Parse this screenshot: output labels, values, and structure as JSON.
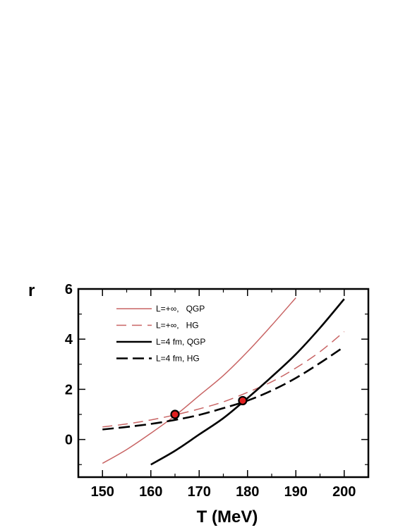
{
  "chart_data": {
    "type": "line",
    "xlabel": "T (MeV)",
    "ylabel": "r",
    "xlim": [
      145,
      205
    ],
    "ylim": [
      -1.5,
      6
    ],
    "x_ticks": [
      150,
      160,
      170,
      180,
      190,
      200
    ],
    "y_ticks": [
      0,
      2,
      4,
      6
    ],
    "legend_position": "top-left",
    "grid": false,
    "series": [
      {
        "name": "L=+∞,   QGP",
        "color": "#c86464",
        "dash": "solid",
        "width": "thin",
        "x": [
          150,
          155,
          160,
          165,
          170,
          175,
          180,
          185,
          190
        ],
        "y": [
          -0.95,
          -0.4,
          0.25,
          0.95,
          1.75,
          2.55,
          3.5,
          4.55,
          5.65
        ]
      },
      {
        "name": "L=+∞,   HG",
        "color": "#c86464",
        "dash": "dashed",
        "width": "thin",
        "x": [
          150,
          155,
          160,
          165,
          170,
          175,
          180,
          185,
          190,
          195,
          200
        ],
        "y": [
          0.5,
          0.62,
          0.78,
          0.98,
          1.22,
          1.5,
          1.88,
          2.3,
          2.85,
          3.5,
          4.3
        ]
      },
      {
        "name": "L=4 fm, QGP",
        "color": "#000000",
        "dash": "solid",
        "width": "thick",
        "x": [
          160,
          165,
          170,
          175,
          180,
          185,
          190,
          195,
          200
        ],
        "y": [
          -1.0,
          -0.45,
          0.2,
          0.85,
          1.65,
          2.5,
          3.4,
          4.45,
          5.6
        ]
      },
      {
        "name": "L=4 fm, HG",
        "color": "#000000",
        "dash": "dashed",
        "width": "thick",
        "x": [
          150,
          155,
          160,
          165,
          170,
          175,
          180,
          185,
          190,
          195,
          200
        ],
        "y": [
          0.4,
          0.5,
          0.62,
          0.78,
          0.98,
          1.25,
          1.55,
          1.95,
          2.45,
          3.05,
          3.7
        ]
      }
    ],
    "markers": [
      {
        "x": 165,
        "y": 1.0,
        "fill": "#e02020",
        "stroke": "#000000"
      },
      {
        "x": 179,
        "y": 1.55,
        "fill": "#e02020",
        "stroke": "#000000"
      }
    ]
  }
}
